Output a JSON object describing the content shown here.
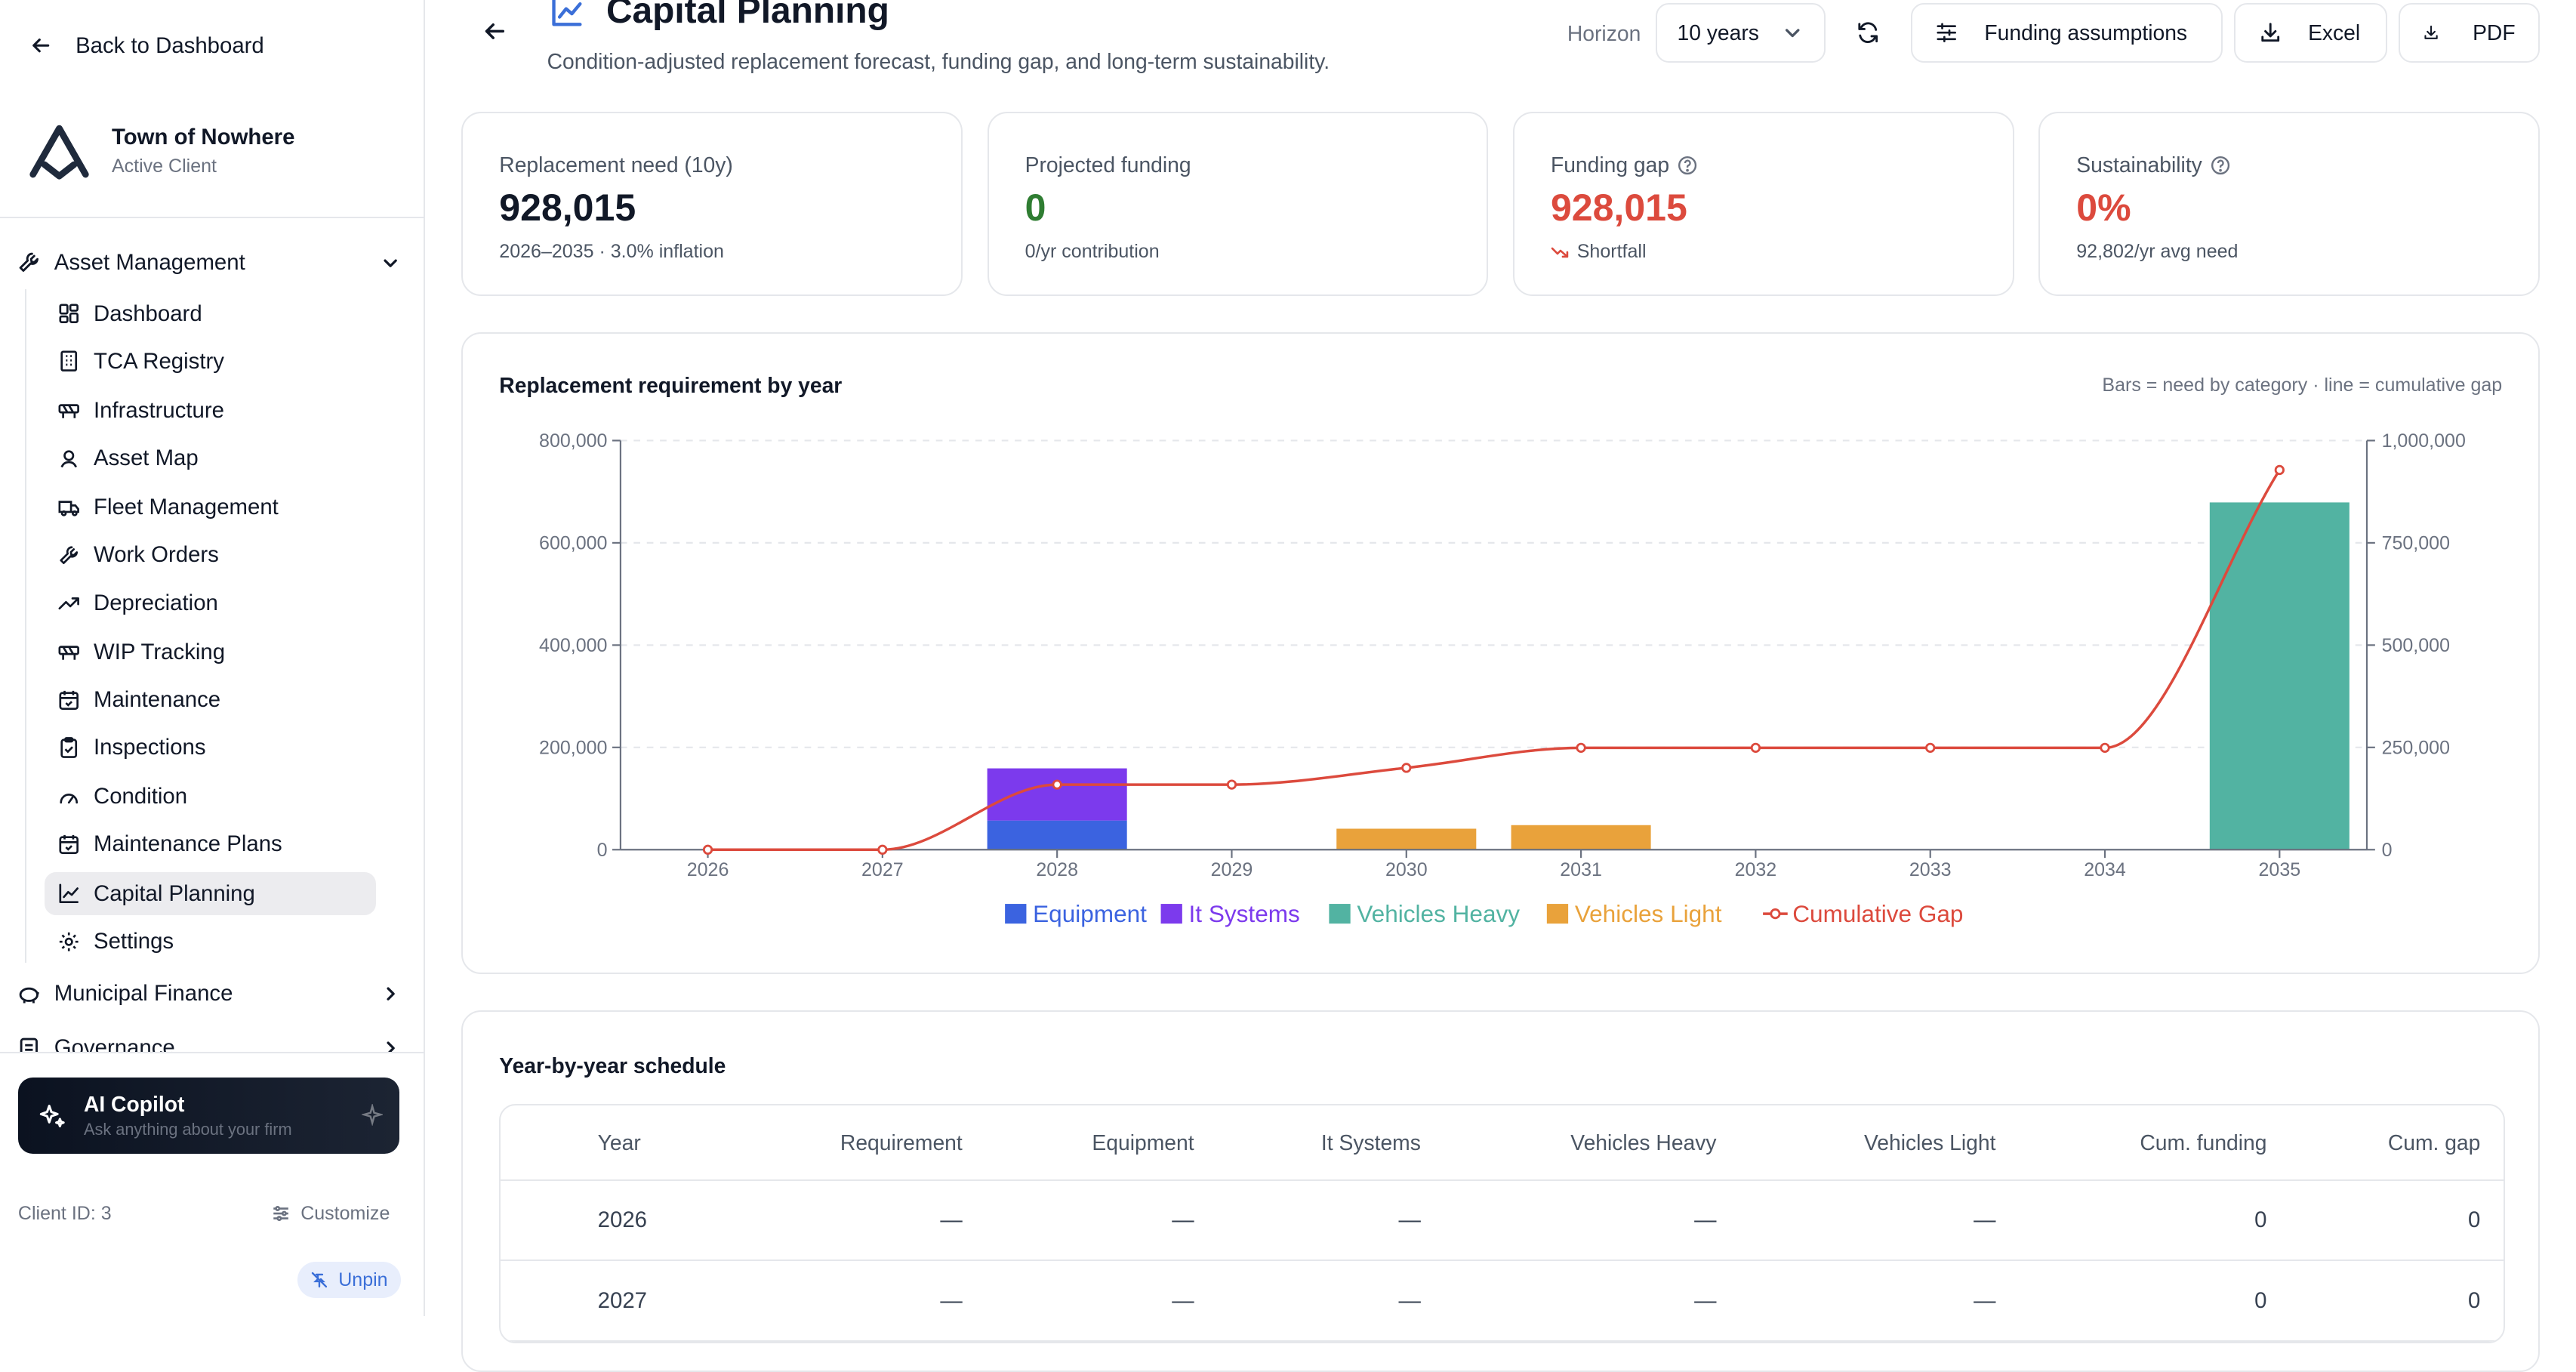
{
  "sidebar": {
    "back_label": "Back to Dashboard",
    "client_name": "Town of Nowhere",
    "client_status": "Active Client",
    "groups": {
      "asset_management": "Asset Management",
      "municipal_finance": "Municipal Finance",
      "governance": "Governance"
    },
    "items": [
      {
        "label": "Dashboard",
        "icon": "dashboard-icon"
      },
      {
        "label": "TCA Registry",
        "icon": "building-icon"
      },
      {
        "label": "Infrastructure",
        "icon": "construction-icon"
      },
      {
        "label": "Asset Map",
        "icon": "map-pin-icon"
      },
      {
        "label": "Fleet Management",
        "icon": "truck-icon"
      },
      {
        "label": "Work Orders",
        "icon": "wrench-icon"
      },
      {
        "label": "Depreciation",
        "icon": "trending-icon"
      },
      {
        "label": "WIP Tracking",
        "icon": "construction-icon"
      },
      {
        "label": "Maintenance",
        "icon": "calendar-icon"
      },
      {
        "label": "Inspections",
        "icon": "clipboard-icon"
      },
      {
        "label": "Condition",
        "icon": "gauge-icon"
      },
      {
        "label": "Maintenance Plans",
        "icon": "calendar-icon"
      },
      {
        "label": "Capital Planning",
        "icon": "chart-line-icon"
      },
      {
        "label": "Settings",
        "icon": "gear-icon"
      }
    ],
    "copilot_title": "AI Copilot",
    "copilot_sub": "Ask anything about your firm",
    "client_id": "Client ID: 3",
    "customize_label": "Customize",
    "unpin_label": "Unpin"
  },
  "header": {
    "title": "Capital Planning",
    "subtitle": "Condition-adjusted replacement forecast, funding gap, and long-term sustainability.",
    "horizon_label": "Horizon",
    "horizon_value": "10 years",
    "funding_label": "Funding assumptions",
    "excel_label": "Excel",
    "pdf_label": "PDF"
  },
  "kpis": [
    {
      "label": "Replacement need (10y)",
      "value": "928,015",
      "note": "2026–2035 · 3.0% inflation",
      "color": "#111827"
    },
    {
      "label": "Projected funding",
      "value": "0",
      "note": "0/yr contribution",
      "color": "#2f7d32"
    },
    {
      "label": "Funding gap",
      "value": "928,015",
      "note": "Shortfall",
      "color": "#dc4a3d"
    },
    {
      "label": "Sustainability",
      "value": "0%",
      "note": "92,802/yr avg need",
      "color": "#dc4a3d"
    }
  ],
  "chart": {
    "title": "Replacement requirement by year",
    "note": "Bars = need by category · line = cumulative gap"
  },
  "chart_data": {
    "type": "bar",
    "categories": [
      "2026",
      "2027",
      "2028",
      "2029",
      "2030",
      "2031",
      "2032",
      "2033",
      "2034",
      "2035"
    ],
    "stacked": true,
    "series": [
      {
        "name": "Equipment",
        "color": "#3b63e0",
        "values": [
          0,
          0,
          57000,
          0,
          0,
          0,
          0,
          0,
          0,
          0
        ]
      },
      {
        "name": "It Systems",
        "color": "#7c3aed",
        "values": [
          0,
          0,
          102000,
          0,
          0,
          0,
          0,
          0,
          0,
          0
        ]
      },
      {
        "name": "Vehicles Heavy",
        "color": "#52b3a2",
        "values": [
          0,
          0,
          0,
          0,
          0,
          0,
          0,
          0,
          0,
          679000
        ]
      },
      {
        "name": "Vehicles Light",
        "color": "#e9a23b",
        "values": [
          0,
          0,
          0,
          0,
          41000,
          48000,
          0,
          0,
          0,
          0
        ]
      }
    ],
    "line": {
      "name": "Cumulative Gap",
      "color": "#dc4a3d",
      "axis": "right",
      "values": [
        0,
        0,
        159000,
        159000,
        200000,
        249000,
        249000,
        249000,
        249000,
        928015
      ]
    },
    "ylim_left": [
      0,
      800000
    ],
    "yticks_left": [
      "0",
      "200,000",
      "400,000",
      "600,000",
      "800,000"
    ],
    "ylim_right": [
      0,
      1000000
    ],
    "yticks_right": [
      "0",
      "250,000",
      "500,000",
      "750,000",
      "1,000,000"
    ],
    "grid": true,
    "legend": "bottom"
  },
  "schedule": {
    "title": "Year-by-year schedule",
    "columns": [
      "Year",
      "Requirement",
      "Equipment",
      "It Systems",
      "Vehicles Heavy",
      "Vehicles Light",
      "Cum. funding",
      "Cum. gap"
    ],
    "rows": [
      [
        "2026",
        "—",
        "—",
        "—",
        "—",
        "—",
        "0",
        "0"
      ],
      [
        "2027",
        "—",
        "—",
        "—",
        "—",
        "—",
        "0",
        "0"
      ]
    ]
  },
  "colors": {
    "accent": "#3b6fd8",
    "positive": "#2f7d32",
    "negative": "#dc4a3d"
  }
}
